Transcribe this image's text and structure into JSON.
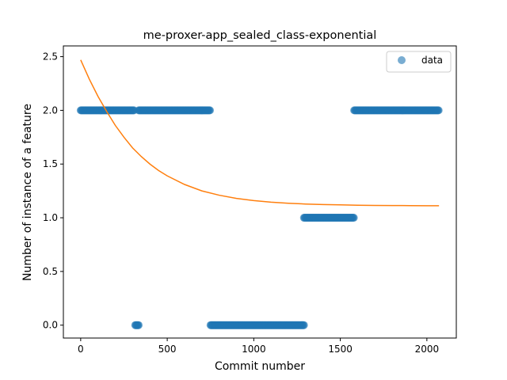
{
  "chart_data": {
    "type": "scatter",
    "title": "me-proxer-app_sealed_class-exponential",
    "xlabel": "Commit number",
    "ylabel": "Number of instance of a feature",
    "xlim": [
      -100,
      2170
    ],
    "ylim": [
      -0.12,
      2.6
    ],
    "xticks": [
      0,
      500,
      1000,
      1500,
      2000
    ],
    "yticks": [
      0.0,
      0.5,
      1.0,
      1.5,
      2.0,
      2.5
    ],
    "xtick_labels": [
      "0",
      "500",
      "1000",
      "1500",
      "2000"
    ],
    "ytick_labels": [
      "0.0",
      "0.5",
      "1.0",
      "1.5",
      "2.0",
      "2.5"
    ],
    "legend": {
      "placement": "top-right",
      "entries": [
        "data"
      ]
    },
    "grid": false,
    "colors": {
      "data": "#1f77b4",
      "fit": "#ff7f0e"
    },
    "series": [
      {
        "name": "data",
        "kind": "points",
        "runs": [
          {
            "x_start": 0,
            "x_end": 310,
            "y": 2
          },
          {
            "x_start": 315,
            "x_end": 335,
            "y": 0
          },
          {
            "x_start": 335,
            "x_end": 750,
            "y": 2
          },
          {
            "x_start": 750,
            "x_end": 1290,
            "y": 0
          },
          {
            "x_start": 1290,
            "x_end": 1580,
            "y": 1
          },
          {
            "x_start": 1580,
            "x_end": 2070,
            "y": 2
          }
        ]
      },
      {
        "kind": "line",
        "x": [
          0,
          50,
          100,
          150,
          200,
          250,
          300,
          350,
          400,
          450,
          500,
          600,
          700,
          800,
          900,
          1000,
          1100,
          1200,
          1300,
          1400,
          1500,
          1600,
          1700,
          1800,
          1900,
          2000,
          2070
        ],
        "y": [
          2.47,
          2.29,
          2.13,
          1.99,
          1.86,
          1.75,
          1.65,
          1.57,
          1.5,
          1.44,
          1.39,
          1.31,
          1.25,
          1.21,
          1.18,
          1.16,
          1.145,
          1.135,
          1.128,
          1.123,
          1.12,
          1.117,
          1.115,
          1.114,
          1.113,
          1.112,
          1.112
        ]
      }
    ]
  }
}
